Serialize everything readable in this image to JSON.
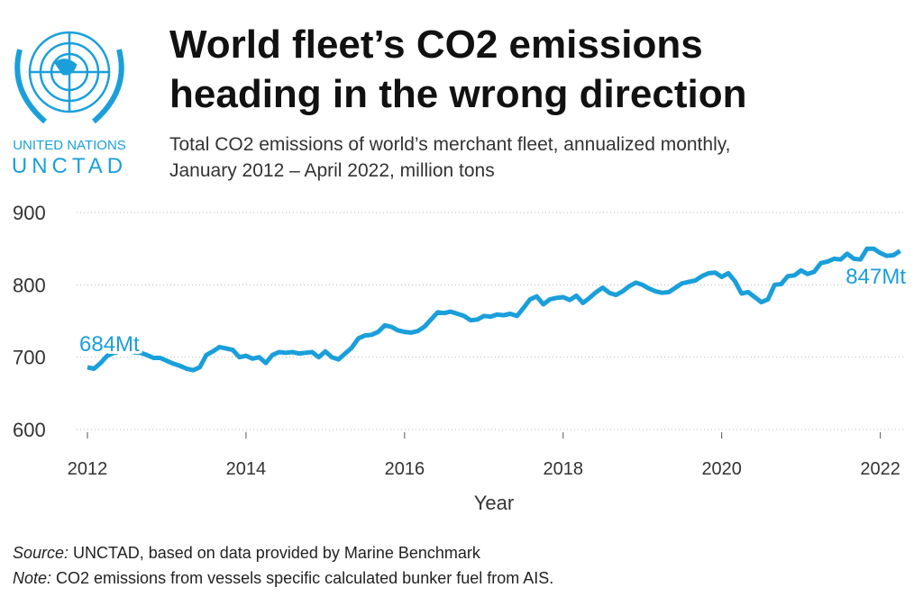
{
  "logo": {
    "line1": "UNITED NATIONS",
    "line2": "UNCTAD"
  },
  "chart_data": {
    "type": "line",
    "title": [
      "World fleet’s CO2 emissions",
      "heading in the wrong direction"
    ],
    "subtitle": [
      "Total CO2 emissions of world’s merchant fleet, annualized monthly,",
      "January 2012 – April 2022, million tons"
    ],
    "x_label": "Year",
    "x": [
      2012,
      2012.083,
      2012.167,
      2012.25,
      2012.333,
      2012.417,
      2012.5,
      2012.583,
      2012.667,
      2012.75,
      2012.833,
      2012.917,
      2013,
      2013.083,
      2013.167,
      2013.25,
      2013.333,
      2013.417,
      2013.5,
      2013.583,
      2013.667,
      2013.75,
      2013.833,
      2013.917,
      2014,
      2014.083,
      2014.167,
      2014.25,
      2014.333,
      2014.417,
      2014.5,
      2014.583,
      2014.667,
      2014.75,
      2014.833,
      2014.917,
      2015,
      2015.083,
      2015.167,
      2015.25,
      2015.333,
      2015.417,
      2015.5,
      2015.583,
      2015.667,
      2015.75,
      2015.833,
      2015.917,
      2016,
      2016.083,
      2016.167,
      2016.25,
      2016.333,
      2016.417,
      2016.5,
      2016.583,
      2016.667,
      2016.75,
      2016.833,
      2016.917,
      2017,
      2017.083,
      2017.167,
      2017.25,
      2017.333,
      2017.417,
      2017.5,
      2017.583,
      2017.667,
      2017.75,
      2017.833,
      2017.917,
      2018,
      2018.083,
      2018.167,
      2018.25,
      2018.333,
      2018.417,
      2018.5,
      2018.583,
      2018.667,
      2018.75,
      2018.833,
      2018.917,
      2019,
      2019.083,
      2019.167,
      2019.25,
      2019.333,
      2019.417,
      2019.5,
      2019.583,
      2019.667,
      2019.75,
      2019.833,
      2019.917,
      2020,
      2020.083,
      2020.167,
      2020.25,
      2020.333,
      2020.417,
      2020.5,
      2020.583,
      2020.667,
      2020.75,
      2020.833,
      2020.917,
      2021,
      2021.083,
      2021.167,
      2021.25,
      2021.333,
      2021.417,
      2021.5,
      2021.583,
      2021.667,
      2021.75,
      2021.833,
      2021.917,
      2022,
      2022.083,
      2022.167,
      2022.25
    ],
    "values": [
      686,
      684,
      692,
      702,
      706,
      708,
      708,
      707,
      706,
      703,
      699,
      699,
      695,
      691,
      688,
      684,
      682,
      686,
      703,
      708,
      714,
      712,
      710,
      700,
      702,
      698,
      700,
      692,
      703,
      707,
      706,
      707,
      705,
      706,
      707,
      700,
      708,
      700,
      697,
      705,
      713,
      726,
      730,
      731,
      735,
      744,
      742,
      737,
      735,
      734,
      736,
      742,
      752,
      762,
      761,
      763,
      760,
      757,
      751,
      752,
      757,
      756,
      759,
      758,
      760,
      757,
      768,
      780,
      784,
      773,
      780,
      782,
      783,
      779,
      785,
      775,
      782,
      790,
      796,
      789,
      786,
      791,
      798,
      803,
      800,
      795,
      791,
      789,
      790,
      796,
      802,
      804,
      806,
      812,
      816,
      817,
      811,
      816,
      805,
      788,
      790,
      783,
      776,
      780,
      800,
      801,
      812,
      813,
      820,
      815,
      818,
      830,
      832,
      836,
      835,
      843,
      836,
      835,
      850,
      850,
      844,
      840,
      841,
      847
    ],
    "color": "#1a9fdb",
    "xlim": [
      2012,
      2022.3
    ],
    "xticks": [
      2012,
      2014,
      2016,
      2018,
      2020,
      2022
    ],
    "ylim": [
      600,
      900
    ],
    "yticks": [
      600,
      700,
      800,
      900
    ],
    "grid": true,
    "annotations": [
      "684Mt",
      "847Mt"
    ],
    "footer": [
      {
        "label": "Source:",
        "text": " UNCTAD, based on data provided by Marine Benchmark"
      },
      {
        "label": "Note:",
        "text": " CO2 emissions from vessels specific calculated bunker fuel from AIS."
      }
    ]
  }
}
